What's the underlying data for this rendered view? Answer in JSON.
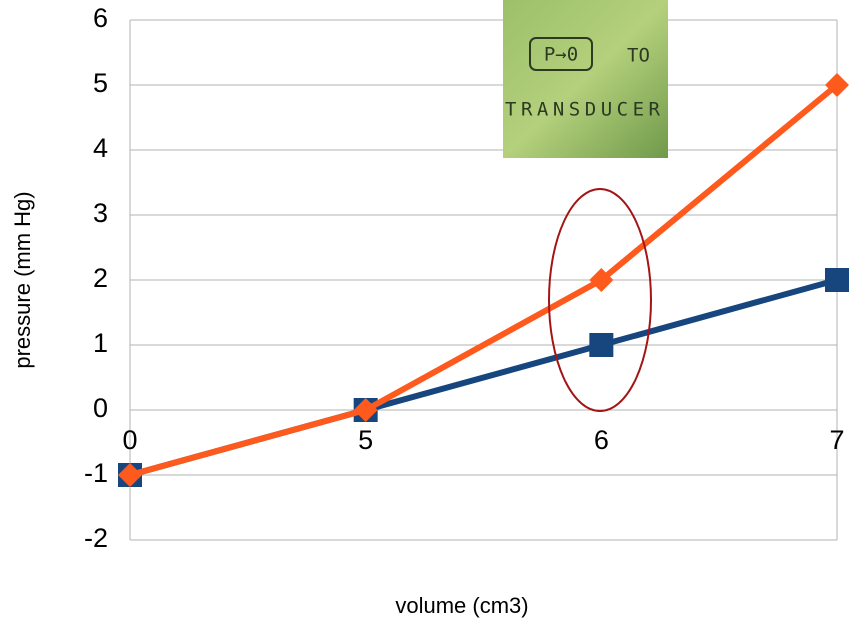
{
  "chart_data": {
    "type": "line",
    "x_label": "volume (cm3)",
    "y_label": "pressure (mm Hg)",
    "categories": [
      "0",
      "5",
      "6",
      "7"
    ],
    "series": [
      {
        "color": "#17467f",
        "marker": "square",
        "values": [
          -1,
          0,
          1,
          2
        ]
      },
      {
        "color": "#ff5a1e",
        "marker": "diamond",
        "values": [
          -1,
          0,
          2,
          5
        ]
      }
    ],
    "ylim": [
      -2,
      6
    ],
    "yticks": [
      -2,
      -1,
      0,
      1,
      2,
      3,
      4,
      5,
      6
    ],
    "grid": true,
    "annotations": [
      "P→0",
      "TO",
      "TRANSDUCER"
    ]
  }
}
